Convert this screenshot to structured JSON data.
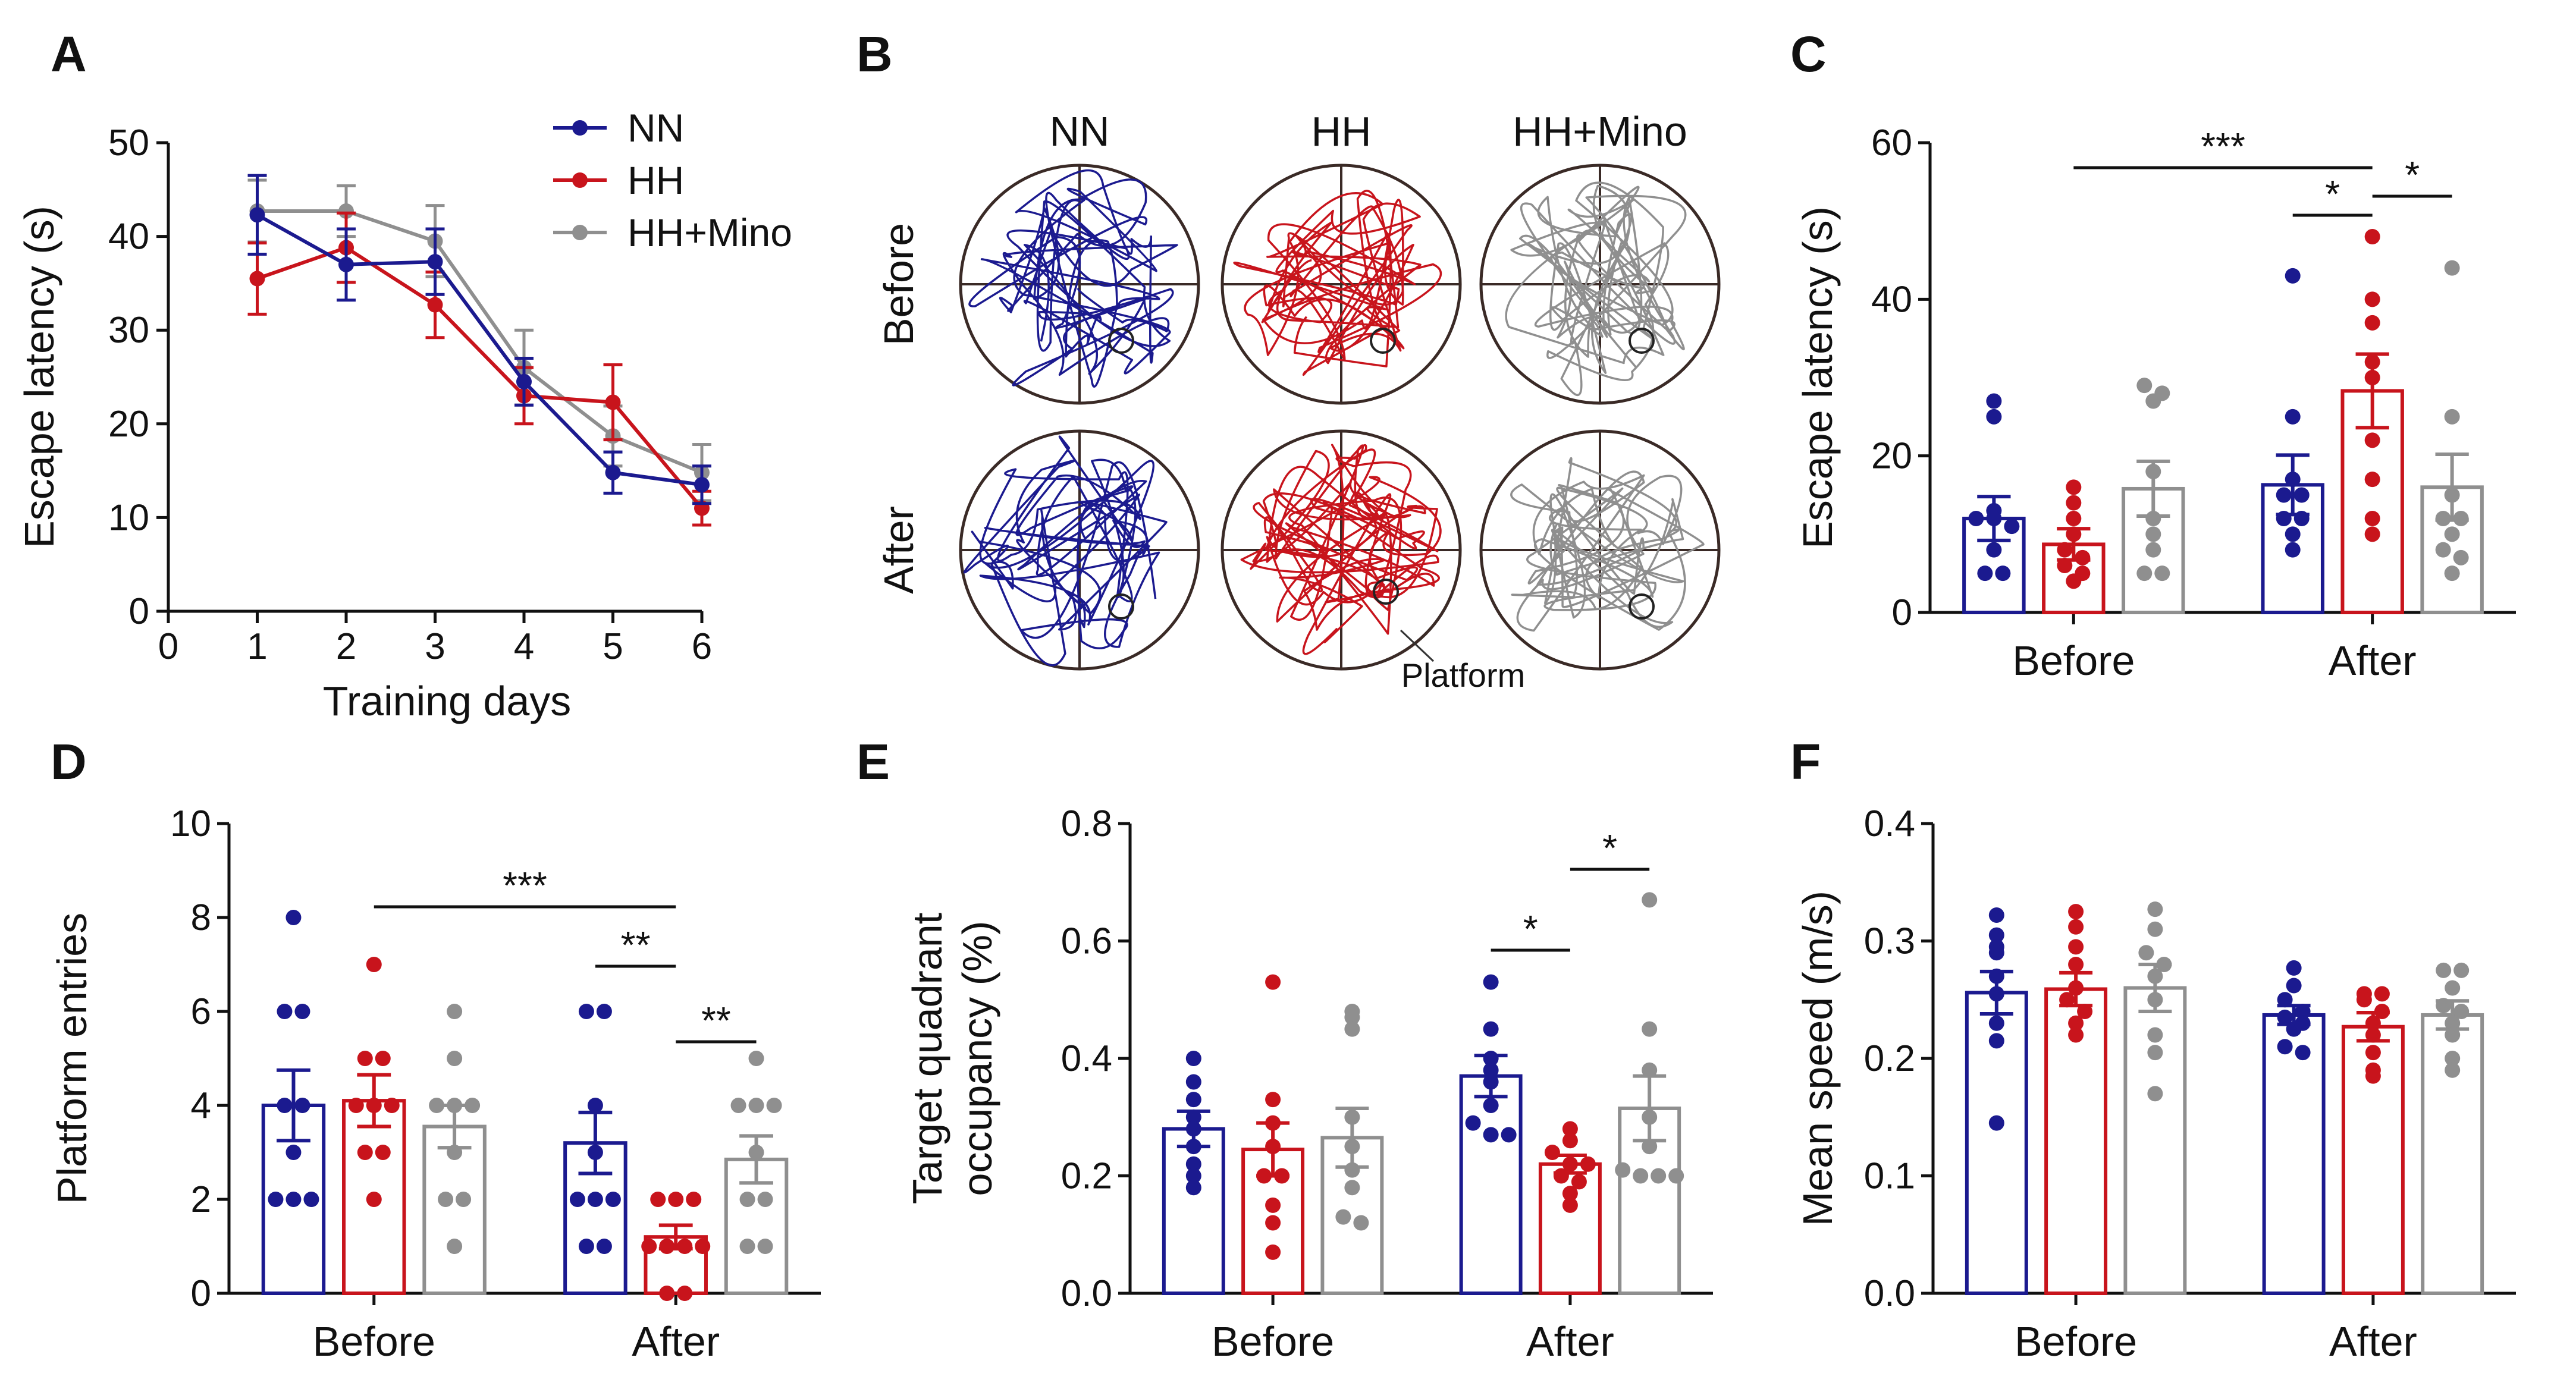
{
  "colors": {
    "NN": "#1b1a8f",
    "HH": "#c8141c",
    "HH+Mino": "#8f8f8f"
  },
  "groups": [
    "NN",
    "HH",
    "HH+Mino"
  ],
  "panel_letters": [
    "A",
    "B",
    "C",
    "D",
    "E",
    "F"
  ],
  "chart_data": [
    {
      "panel": "A",
      "type": "line",
      "xlabel": "Training days",
      "ylabel": "Escape latency (s)",
      "xlim": [
        0,
        6
      ],
      "ylim": [
        0,
        50
      ],
      "xticks": [
        "0",
        "1",
        "2",
        "3",
        "4",
        "5",
        "6"
      ],
      "yticks": [
        "0",
        "10",
        "20",
        "30",
        "40",
        "50"
      ],
      "x": [
        1,
        2,
        3,
        4,
        5,
        6
      ],
      "series": [
        {
          "name": "NN",
          "values": [
            42.3,
            37.0,
            37.3,
            24.5,
            14.8,
            13.5
          ],
          "err": [
            4.2,
            3.8,
            3.5,
            2.5,
            2.2,
            2.0
          ]
        },
        {
          "name": "HH",
          "values": [
            35.5,
            38.8,
            32.7,
            23.0,
            22.3,
            11.0
          ],
          "err": [
            3.8,
            3.7,
            3.5,
            3.0,
            4.0,
            1.8
          ]
        },
        {
          "name": "HH+Mino",
          "values": [
            42.7,
            42.7,
            39.5,
            26.0,
            18.7,
            14.8
          ],
          "err": [
            3.3,
            2.7,
            3.8,
            4.0,
            3.2,
            3.0
          ]
        }
      ],
      "legend": [
        "NN",
        "HH",
        "HH+Mino"
      ]
    },
    {
      "panel": "C",
      "type": "bar",
      "ylabel": "Escape latency (s)",
      "ylim": [
        0,
        60
      ],
      "yticks": [
        "0",
        "20",
        "40",
        "60"
      ],
      "categories": [
        "Before",
        "After"
      ],
      "series": [
        {
          "name": "NN",
          "values": [
            12.0,
            16.3
          ],
          "err": [
            2.8,
            3.8
          ],
          "points": [
            [
              27,
              25,
              13,
              12,
              12,
              11,
              8,
              5,
              5
            ],
            [
              43,
              25,
              17,
              15,
              15,
              12,
              12,
              10,
              8
            ]
          ]
        },
        {
          "name": "HH",
          "values": [
            8.7,
            28.3
          ],
          "err": [
            2.0,
            4.7
          ],
          "points": [
            [
              16,
              14,
              12,
              10,
              8,
              7,
              6,
              5,
              4
            ],
            [
              48,
              40,
              37,
              32,
              30,
              22,
              17,
              12,
              10
            ]
          ]
        },
        {
          "name": "HH+Mino",
          "values": [
            15.8,
            16.0
          ],
          "err": [
            3.5,
            4.2
          ],
          "points": [
            [
              29,
              28,
              27,
              18,
              12,
              10,
              8,
              5,
              5
            ],
            [
              44,
              25,
              15,
              12,
              12,
              10,
              8,
              7,
              5
            ]
          ]
        }
      ],
      "significance": [
        {
          "label": "***",
          "from": [
            0,
            1
          ],
          "to": [
            1,
            1
          ]
        },
        {
          "label": "*",
          "from": [
            1,
            0
          ],
          "to": [
            1,
            1
          ]
        },
        {
          "label": "*",
          "from": [
            1,
            1
          ],
          "to": [
            1,
            2
          ]
        }
      ]
    },
    {
      "panel": "D",
      "type": "bar",
      "ylabel": "Platform entries",
      "ylim": [
        0,
        10
      ],
      "yticks": [
        "0",
        "2",
        "4",
        "6",
        "8",
        "10"
      ],
      "categories": [
        "Before",
        "After"
      ],
      "series": [
        {
          "name": "NN",
          "values": [
            4.0,
            3.2
          ],
          "err": [
            0.75,
            0.65
          ],
          "points": [
            [
              8,
              6,
              6,
              4,
              4,
              3,
              2,
              2,
              2
            ],
            [
              6,
              6,
              4,
              3,
              2,
              2,
              2,
              1,
              1
            ]
          ]
        },
        {
          "name": "HH",
          "values": [
            4.1,
            1.2
          ],
          "err": [
            0.55,
            0.25
          ],
          "points": [
            [
              7,
              5,
              5,
              4,
              4,
              4,
              3,
              3,
              2
            ],
            [
              2,
              2,
              2,
              1,
              1,
              1,
              1,
              0,
              0
            ]
          ]
        },
        {
          "name": "HH+Mino",
          "values": [
            3.55,
            2.85
          ],
          "err": [
            0.45,
            0.5
          ],
          "points": [
            [
              6,
              5,
              4,
              4,
              4,
              3,
              2,
              2,
              1
            ],
            [
              5,
              4,
              4,
              4,
              3,
              2,
              2,
              1,
              1
            ]
          ]
        }
      ],
      "significance": [
        {
          "label": "***",
          "from": [
            0,
            1
          ],
          "to": [
            1,
            1
          ]
        },
        {
          "label": "**",
          "from": [
            1,
            0
          ],
          "to": [
            1,
            1
          ]
        },
        {
          "label": "**",
          "from": [
            1,
            1
          ],
          "to": [
            1,
            2
          ]
        }
      ]
    },
    {
      "panel": "E",
      "type": "bar",
      "ylabel": "Target quadrant occupancy (%)",
      "ylabel_lines": [
        "Target quadrant",
        "occupancy (%)"
      ],
      "ylim": [
        0,
        0.8
      ],
      "yticks": [
        "0.0",
        "0.2",
        "0.4",
        "0.6",
        "0.8"
      ],
      "categories": [
        "Before",
        "After"
      ],
      "series": [
        {
          "name": "NN",
          "values": [
            0.28,
            0.37
          ],
          "err": [
            0.03,
            0.035
          ],
          "points": [
            [
              0.4,
              0.36,
              0.33,
              0.3,
              0.28,
              0.25,
              0.22,
              0.2,
              0.18
            ],
            [
              0.53,
              0.45,
              0.4,
              0.38,
              0.36,
              0.32,
              0.29,
              0.27,
              0.27
            ]
          ]
        },
        {
          "name": "HH",
          "values": [
            0.245,
            0.22
          ],
          "err": [
            0.045,
            0.015
          ],
          "points": [
            [
              0.53,
              0.33,
              0.29,
              0.25,
              0.2,
              0.2,
              0.15,
              0.12,
              0.07
            ],
            [
              0.28,
              0.26,
              0.24,
              0.22,
              0.22,
              0.2,
              0.19,
              0.17,
              0.15
            ]
          ]
        },
        {
          "name": "HH+Mino",
          "values": [
            0.265,
            0.315
          ],
          "err": [
            0.05,
            0.055
          ],
          "points": [
            [
              0.48,
              0.47,
              0.45,
              0.3,
              0.25,
              0.21,
              0.18,
              0.13,
              0.12
            ],
            [
              0.67,
              0.45,
              0.38,
              0.3,
              0.25,
              0.21,
              0.2,
              0.2,
              0.2
            ]
          ]
        }
      ],
      "significance": [
        {
          "label": "*",
          "from": [
            1,
            0
          ],
          "to": [
            1,
            1
          ]
        },
        {
          "label": "*",
          "from": [
            1,
            1
          ],
          "to": [
            1,
            2
          ]
        }
      ]
    },
    {
      "panel": "F",
      "type": "bar",
      "ylabel": "Mean speed (m/s)",
      "ylim": [
        0,
        0.4
      ],
      "yticks": [
        "0.0",
        "0.1",
        "0.2",
        "0.3",
        "0.4"
      ],
      "categories": [
        "Before",
        "After"
      ],
      "series": [
        {
          "name": "NN",
          "values": [
            0.256,
            0.237
          ],
          "err": [
            0.018,
            0.008
          ],
          "points": [
            [
              0.322,
              0.305,
              0.295,
              0.29,
              0.27,
              0.255,
              0.23,
              0.215,
              0.145
            ],
            [
              0.277,
              0.262,
              0.25,
              0.24,
              0.235,
              0.23,
              0.225,
              0.21,
              0.205
            ]
          ]
        },
        {
          "name": "HH",
          "values": [
            0.259,
            0.227
          ],
          "err": [
            0.014,
            0.012
          ],
          "points": [
            [
              0.325,
              0.312,
              0.295,
              0.28,
              0.26,
              0.25,
              0.24,
              0.23,
              0.22
            ],
            [
              0.255,
              0.255,
              0.25,
              0.24,
              0.23,
              0.22,
              0.205,
              0.19,
              0.185
            ]
          ]
        },
        {
          "name": "HH+Mino",
          "values": [
            0.26,
            0.237
          ],
          "err": [
            0.02,
            0.012
          ],
          "points": [
            [
              0.327,
              0.31,
              0.29,
              0.28,
              0.27,
              0.25,
              0.22,
              0.205,
              0.17
            ],
            [
              0.275,
              0.275,
              0.26,
              0.245,
              0.24,
              0.23,
              0.22,
              0.2,
              0.19
            ]
          ]
        }
      ]
    }
  ],
  "maze": {
    "columns": [
      "NN",
      "HH",
      "HH+Mino"
    ],
    "rows": [
      "Before",
      "After"
    ],
    "annotation": "Platform"
  }
}
